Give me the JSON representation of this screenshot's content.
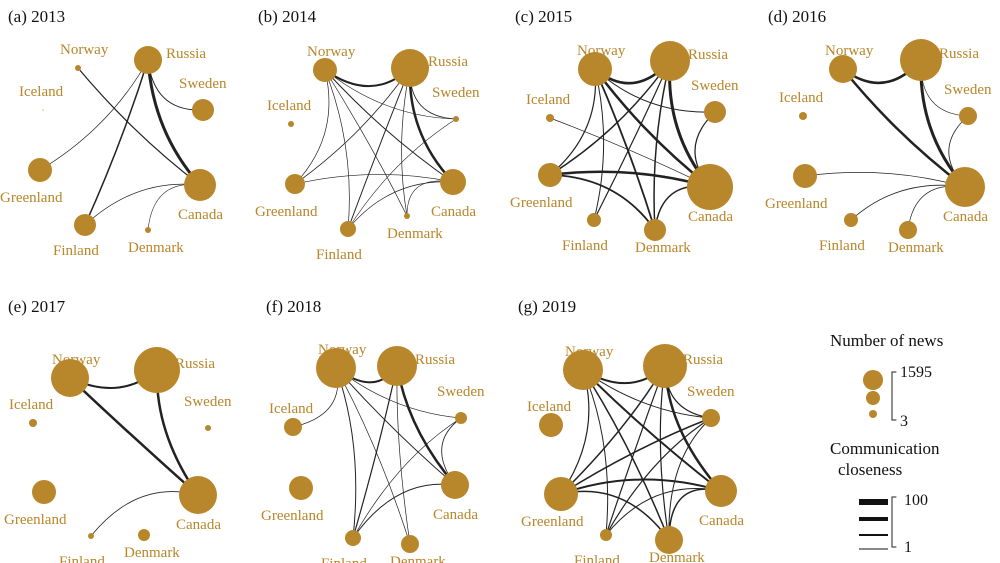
{
  "colors": {
    "node": "#b8862b",
    "edge": "#222222",
    "text": "#111111"
  },
  "panels": [
    {
      "title": "(a) 2013",
      "labels": [
        "Norway",
        "Russia",
        "Iceland",
        "Sweden",
        "Greenland",
        "Canada",
        "Finland",
        "Denmark"
      ],
      "sizes": {
        "Norway": 3,
        "Russia": 14,
        "Iceland": 0.6,
        "Sweden": 11,
        "Greenland": 12,
        "Canada": 16,
        "Finland": 11,
        "Denmark": 3
      },
      "edges": [
        [
          "Norway",
          "Canada",
          1.2
        ],
        [
          "Russia",
          "Canada",
          3
        ],
        [
          "Russia",
          "Finland",
          1.5
        ],
        [
          "Russia",
          "Sweden",
          1
        ],
        [
          "Russia",
          "Greenland",
          0.7
        ],
        [
          "Canada",
          "Finland",
          0.7
        ],
        [
          "Canada",
          "Denmark",
          0.6
        ]
      ]
    },
    {
      "title": "(b) 2014",
      "labels": [
        "Norway",
        "Russia",
        "Iceland",
        "Sweden",
        "Greenland",
        "Canada",
        "Finland",
        "Denmark"
      ],
      "sizes": {
        "Norway": 12,
        "Russia": 19,
        "Iceland": 3,
        "Sweden": 3,
        "Greenland": 10,
        "Canada": 13,
        "Finland": 8,
        "Denmark": 3
      },
      "edges": [
        [
          "Norway",
          "Russia",
          2
        ],
        [
          "Norway",
          "Canada",
          1
        ],
        [
          "Norway",
          "Greenland",
          0.7
        ],
        [
          "Norway",
          "Finland",
          0.7
        ],
        [
          "Norway",
          "Denmark",
          0.7
        ],
        [
          "Norway",
          "Sweden",
          0.6
        ],
        [
          "Russia",
          "Canada",
          2.5
        ],
        [
          "Russia",
          "Finland",
          1
        ],
        [
          "Russia",
          "Greenland",
          0.8
        ],
        [
          "Russia",
          "Sweden",
          0.8
        ],
        [
          "Russia",
          "Denmark",
          0.7
        ],
        [
          "Canada",
          "Finland",
          0.7
        ],
        [
          "Canada",
          "Greenland",
          0.7
        ],
        [
          "Canada",
          "Denmark",
          0.6
        ],
        [
          "Sweden",
          "Finland",
          0.6
        ]
      ]
    },
    {
      "title": "(c) 2015",
      "labels": [
        "Norway",
        "Russia",
        "Iceland",
        "Sweden",
        "Greenland",
        "Canada",
        "Finland",
        "Denmark"
      ],
      "sizes": {
        "Norway": 17,
        "Russia": 20,
        "Iceland": 4,
        "Sweden": 11,
        "Greenland": 12,
        "Canada": 23,
        "Finland": 7,
        "Denmark": 11
      },
      "edges": [
        [
          "Norway",
          "Russia",
          2.5
        ],
        [
          "Norway",
          "Canada",
          2.5
        ],
        [
          "Norway",
          "Denmark",
          1.8
        ],
        [
          "Norway",
          "Greenland",
          1.2
        ],
        [
          "Norway",
          "Finland",
          1
        ],
        [
          "Norway",
          "Sweden",
          1
        ],
        [
          "Russia",
          "Canada",
          3
        ],
        [
          "Russia",
          "Greenland",
          1.5
        ],
        [
          "Russia",
          "Finland",
          1.2
        ],
        [
          "Russia",
          "Denmark",
          1.5
        ],
        [
          "Canada",
          "Greenland",
          2.5
        ],
        [
          "Canada",
          "Sweden",
          1.2
        ],
        [
          "Canada",
          "Denmark",
          1.5
        ],
        [
          "Greenland",
          "Denmark",
          1.8
        ],
        [
          "Iceland",
          "Canada",
          0.7
        ]
      ]
    },
    {
      "title": "(d) 2016",
      "labels": [
        "Norway",
        "Russia",
        "Iceland",
        "Sweden",
        "Greenland",
        "Canada",
        "Finland",
        "Denmark"
      ],
      "sizes": {
        "Norway": 14,
        "Russia": 21,
        "Iceland": 4,
        "Sweden": 9,
        "Greenland": 12,
        "Canada": 20,
        "Finland": 7,
        "Denmark": 9
      },
      "edges": [
        [
          "Norway",
          "Russia",
          2.5
        ],
        [
          "Norway",
          "Canada",
          2.5
        ],
        [
          "Russia",
          "Canada",
          3
        ],
        [
          "Canada",
          "Greenland",
          0.8
        ],
        [
          "Canada",
          "Finland",
          0.8
        ],
        [
          "Canada",
          "Denmark",
          0.7
        ],
        [
          "Canada",
          "Sweden",
          0.8
        ],
        [
          "Russia",
          "Sweden",
          0.6
        ]
      ]
    },
    {
      "title": "(e) 2017",
      "labels": [
        "Norway",
        "Russia",
        "Iceland",
        "Sweden",
        "Greenland",
        "Canada",
        "Finland",
        "Denmark"
      ],
      "sizes": {
        "Norway": 19,
        "Russia": 23,
        "Iceland": 4,
        "Sweden": 3,
        "Greenland": 12,
        "Canada": 19,
        "Finland": 3,
        "Denmark": 6
      },
      "edges": [
        [
          "Norway",
          "Russia",
          2
        ],
        [
          "Norway",
          "Canada",
          2.5
        ],
        [
          "Russia",
          "Canada",
          2.5
        ],
        [
          "Canada",
          "Finland",
          0.8
        ]
      ]
    },
    {
      "title": "(f) 2018",
      "labels": [
        "Norway",
        "Russia",
        "Iceland",
        "Sweden",
        "Greenland",
        "Canada",
        "Finland",
        "Denmark"
      ],
      "sizes": {
        "Norway": 20,
        "Russia": 20,
        "Iceland": 9,
        "Sweden": 6,
        "Greenland": 12,
        "Canada": 14,
        "Finland": 8,
        "Denmark": 9
      },
      "edges": [
        [
          "Norway",
          "Russia",
          2
        ],
        [
          "Norway",
          "Canada",
          1
        ],
        [
          "Norway",
          "Iceland",
          0.7
        ],
        [
          "Norway",
          "Finland",
          1
        ],
        [
          "Norway",
          "Denmark",
          0.7
        ],
        [
          "Norway",
          "Sweden",
          0.7
        ],
        [
          "Russia",
          "Canada",
          2.5
        ],
        [
          "Russia",
          "Finland",
          1.2
        ],
        [
          "Russia",
          "Denmark",
          0.7
        ],
        [
          "Canada",
          "Finland",
          1
        ],
        [
          "Canada",
          "Sweden",
          0.8
        ],
        [
          "Sweden",
          "Finland",
          0.7
        ]
      ]
    },
    {
      "title": "(g) 2019",
      "labels": [
        "Norway",
        "Russia",
        "Iceland",
        "Sweden",
        "Greenland",
        "Canada",
        "Finland",
        "Denmark"
      ],
      "sizes": {
        "Norway": 20,
        "Russia": 22,
        "Iceland": 12,
        "Sweden": 9,
        "Greenland": 17,
        "Canada": 16,
        "Finland": 6,
        "Denmark": 14
      },
      "edges": [
        [
          "Norway",
          "Russia",
          2
        ],
        [
          "Norway",
          "Canada",
          2
        ],
        [
          "Norway",
          "Denmark",
          1.5
        ],
        [
          "Norway",
          "Greenland",
          1.2
        ],
        [
          "Norway",
          "Finland",
          1
        ],
        [
          "Norway",
          "Sweden",
          1
        ],
        [
          "Russia",
          "Canada",
          2.5
        ],
        [
          "Russia",
          "Greenland",
          1.5
        ],
        [
          "Russia",
          "Finland",
          1.2
        ],
        [
          "Russia",
          "Denmark",
          1.2
        ],
        [
          "Russia",
          "Sweden",
          1.2
        ],
        [
          "Canada",
          "Greenland",
          2
        ],
        [
          "Canada",
          "Denmark",
          1.5
        ],
        [
          "Canada",
          "Finland",
          1
        ],
        [
          "Sweden",
          "Greenland",
          1.5
        ],
        [
          "Sweden",
          "Finland",
          1.2
        ],
        [
          "Greenland",
          "Denmark",
          1.5
        ],
        [
          "Sweden",
          "Denmark",
          1
        ]
      ]
    }
  ],
  "legend": {
    "news_title": "Number of news",
    "news_max": "1595",
    "news_min": "3",
    "close_title_1": "Communication",
    "close_title_2": "closeness",
    "close_max": "100",
    "close_min": "1"
  }
}
